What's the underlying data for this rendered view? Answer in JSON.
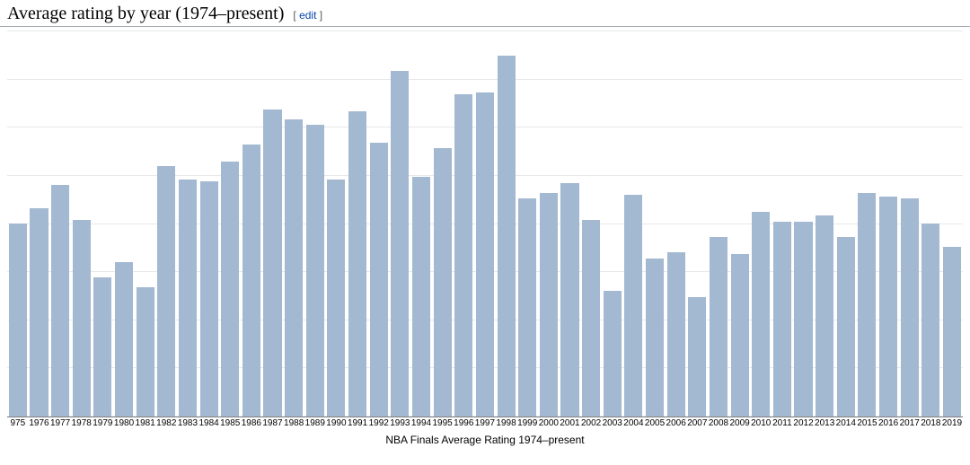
{
  "header": {
    "title": "Average rating by year (1974–present)",
    "edit_label": "edit"
  },
  "chart": {
    "type": "bar",
    "caption": "NBA Finals Average Rating 1974–present",
    "bar_color": "#a3b8d1",
    "grid_color": "#e8e8e8",
    "background_color": "#ffffff",
    "axis_font": "Arial",
    "axis_fontsize": 10,
    "caption_fontsize": 12,
    "ylim": [
      0,
      20
    ],
    "gridline_count": 9,
    "bar_width_ratio": 0.85,
    "x_labels": [
      "975",
      "1976",
      "1977",
      "1978",
      "1979",
      "1980",
      "1981",
      "1982",
      "1983",
      "1984",
      "1985",
      "1986",
      "1987",
      "1988",
      "1989",
      "1990",
      "1991",
      "1992",
      "1993",
      "1994",
      "1995",
      "1996",
      "1997",
      "1998",
      "1999",
      "2000",
      "2001",
      "2002",
      "2003",
      "2004",
      "2005",
      "2006",
      "2007",
      "2008",
      "2009",
      "2010",
      "2011",
      "2012",
      "2013",
      "2014",
      "2015",
      "2016",
      "2017",
      "2018",
      "2019"
    ],
    "values": [
      10.0,
      10.8,
      12.0,
      10.2,
      7.2,
      8.0,
      6.7,
      13.0,
      12.3,
      12.2,
      13.2,
      14.1,
      15.9,
      15.4,
      15.1,
      12.3,
      15.8,
      14.2,
      17.9,
      12.4,
      13.9,
      16.7,
      16.8,
      18.7,
      11.3,
      11.6,
      12.1,
      10.2,
      6.5,
      11.5,
      8.2,
      8.5,
      6.2,
      9.3,
      8.4,
      10.6,
      10.1,
      10.1,
      10.4,
      9.3,
      11.6,
      11.4,
      11.3,
      10.0,
      8.8
    ]
  }
}
